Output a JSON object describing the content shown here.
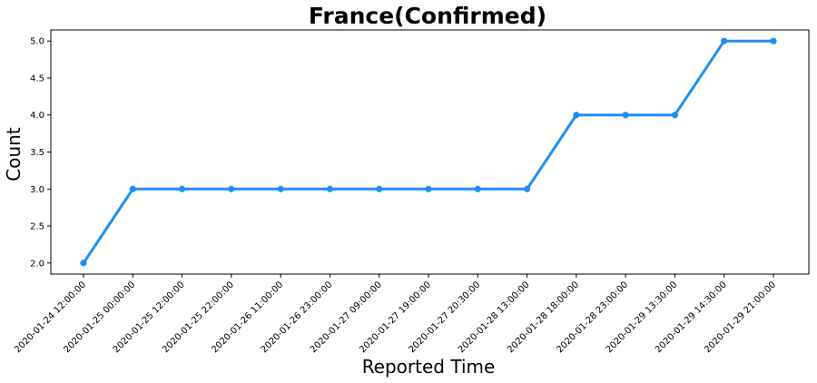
{
  "chart_data": {
    "type": "line",
    "title": "France(Confirmed)",
    "xlabel": "Reported Time",
    "ylabel": "Count",
    "x": [
      "2020-01-24 12:00:00",
      "2020-01-25 00:00:00",
      "2020-01-25 12:00:00",
      "2020-01-25 22:00:00",
      "2020-01-26 11:00:00",
      "2020-01-26 23:00:00",
      "2020-01-27 09:00:00",
      "2020-01-27 19:00:00",
      "2020-01-27 20:30:00",
      "2020-01-28 13:00:00",
      "2020-01-28 18:00:00",
      "2020-01-28 23:00:00",
      "2020-01-29 13:30:00",
      "2020-01-29 14:30:00",
      "2020-01-29 21:00:00"
    ],
    "series": [
      {
        "values": [
          2,
          3,
          3,
          3,
          3,
          3,
          3,
          3,
          3,
          3,
          4,
          4,
          4,
          5,
          5
        ],
        "color": "#1f8ef1"
      }
    ],
    "yticks": [
      "2.0",
      "2.5",
      "3.0",
      "3.5",
      "4.0",
      "4.5",
      "5.0"
    ],
    "ylim": [
      1.85,
      5.15
    ],
    "grid": false,
    "legend": "none"
  }
}
